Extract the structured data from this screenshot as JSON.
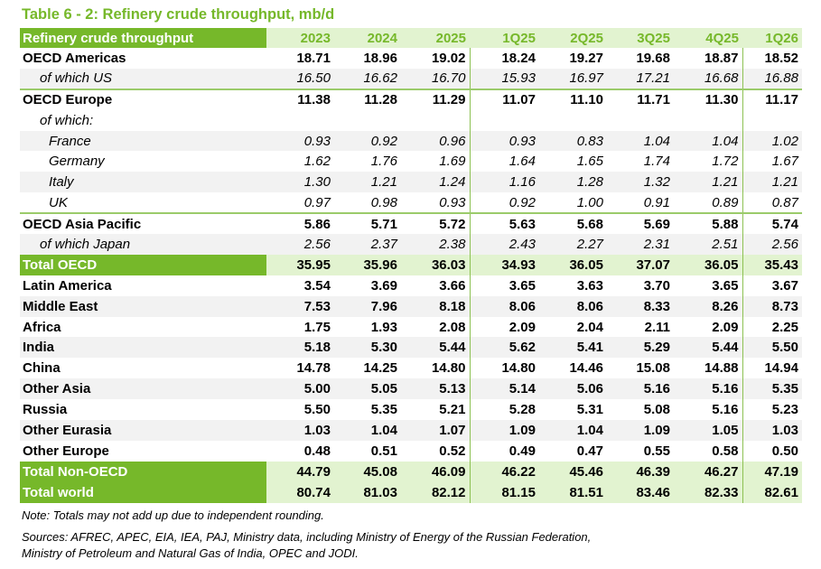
{
  "title": "Table 6 - 2: Refinery crude throughput, mb/d",
  "columns": [
    "Refinery crude throughput",
    "2023",
    "2024",
    "2025",
    "1Q25",
    "2Q25",
    "3Q25",
    "4Q25",
    "1Q26"
  ],
  "rows": [
    {
      "label": "OECD Americas",
      "style": "bold",
      "values": [
        "18.71",
        "18.96",
        "19.02",
        "18.24",
        "19.27",
        "19.68",
        "18.87",
        "18.52"
      ]
    },
    {
      "label": "of which US",
      "style": "ital ind1 gray line",
      "values": [
        "16.50",
        "16.62",
        "16.70",
        "15.93",
        "16.97",
        "17.21",
        "16.68",
        "16.88"
      ]
    },
    {
      "label": "OECD Europe",
      "style": "bold",
      "values": [
        "11.38",
        "11.28",
        "11.29",
        "11.07",
        "11.10",
        "11.71",
        "11.30",
        "11.17"
      ]
    },
    {
      "label": "of which:",
      "style": "ital ind1",
      "values": [
        "",
        "",
        "",
        "",
        "",
        "",
        "",
        ""
      ]
    },
    {
      "label": "France",
      "style": "ital ind2 gray",
      "values": [
        "0.93",
        "0.92",
        "0.96",
        "0.93",
        "0.83",
        "1.04",
        "1.04",
        "1.02"
      ]
    },
    {
      "label": "Germany",
      "style": "ital ind2",
      "values": [
        "1.62",
        "1.76",
        "1.69",
        "1.64",
        "1.65",
        "1.74",
        "1.72",
        "1.67"
      ]
    },
    {
      "label": "Italy",
      "style": "ital ind2 gray",
      "values": [
        "1.30",
        "1.21",
        "1.24",
        "1.16",
        "1.28",
        "1.32",
        "1.21",
        "1.21"
      ]
    },
    {
      "label": "UK",
      "style": "ital ind2 line",
      "values": [
        "0.97",
        "0.98",
        "0.93",
        "0.92",
        "1.00",
        "0.91",
        "0.89",
        "0.87"
      ]
    },
    {
      "label": "OECD Asia Pacific",
      "style": "bold",
      "values": [
        "5.86",
        "5.71",
        "5.72",
        "5.63",
        "5.68",
        "5.69",
        "5.88",
        "5.74"
      ]
    },
    {
      "label": "of which Japan",
      "style": "ital ind1 gray",
      "values": [
        "2.56",
        "2.37",
        "2.38",
        "2.43",
        "2.27",
        "2.31",
        "2.51",
        "2.56"
      ]
    },
    {
      "label": "Total OECD",
      "style": "total",
      "values": [
        "35.95",
        "35.96",
        "36.03",
        "34.93",
        "36.05",
        "37.07",
        "36.05",
        "35.43"
      ]
    },
    {
      "label": "Latin America",
      "style": "bold",
      "values": [
        "3.54",
        "3.69",
        "3.66",
        "3.65",
        "3.63",
        "3.70",
        "3.65",
        "3.67"
      ]
    },
    {
      "label": "Middle East",
      "style": "bold gray",
      "values": [
        "7.53",
        "7.96",
        "8.18",
        "8.06",
        "8.06",
        "8.33",
        "8.26",
        "8.73"
      ]
    },
    {
      "label": "Africa",
      "style": "bold",
      "values": [
        "1.75",
        "1.93",
        "2.08",
        "2.09",
        "2.04",
        "2.11",
        "2.09",
        "2.25"
      ]
    },
    {
      "label": "India",
      "style": "bold gray",
      "values": [
        "5.18",
        "5.30",
        "5.44",
        "5.62",
        "5.41",
        "5.29",
        "5.44",
        "5.50"
      ]
    },
    {
      "label": "China",
      "style": "bold",
      "values": [
        "14.78",
        "14.25",
        "14.80",
        "14.80",
        "14.46",
        "15.08",
        "14.88",
        "14.94"
      ]
    },
    {
      "label": "Other Asia",
      "style": "bold gray",
      "values": [
        "5.00",
        "5.05",
        "5.13",
        "5.14",
        "5.06",
        "5.16",
        "5.16",
        "5.35"
      ]
    },
    {
      "label": "Russia",
      "style": "bold",
      "values": [
        "5.50",
        "5.35",
        "5.21",
        "5.28",
        "5.31",
        "5.08",
        "5.16",
        "5.23"
      ]
    },
    {
      "label": "Other Eurasia",
      "style": "bold gray",
      "values": [
        "1.03",
        "1.04",
        "1.07",
        "1.09",
        "1.04",
        "1.09",
        "1.05",
        "1.03"
      ]
    },
    {
      "label": "Other Europe",
      "style": "bold",
      "values": [
        "0.48",
        "0.51",
        "0.52",
        "0.49",
        "0.47",
        "0.55",
        "0.58",
        "0.50"
      ]
    },
    {
      "label": "Total Non-OECD",
      "style": "total",
      "values": [
        "44.79",
        "45.08",
        "46.09",
        "46.22",
        "45.46",
        "46.39",
        "46.27",
        "47.19"
      ]
    },
    {
      "label": "Total world",
      "style": "total",
      "values": [
        "80.74",
        "81.03",
        "82.12",
        "81.15",
        "81.51",
        "83.46",
        "82.33",
        "82.61"
      ]
    }
  ],
  "note": "Note: Totals may not add up due to independent rounding.",
  "sources_line1": "Sources: AFREC, APEC, EIA, IEA, PAJ, Ministry data, including Ministry of Energy of the Russian Federation,",
  "sources_line2": "Ministry of Petroleum and Natural Gas of India, OPEC and JODI.",
  "colors": {
    "accent": "#76B82A",
    "light": "#E2F3D0",
    "stripe": "#F2F2F2"
  }
}
